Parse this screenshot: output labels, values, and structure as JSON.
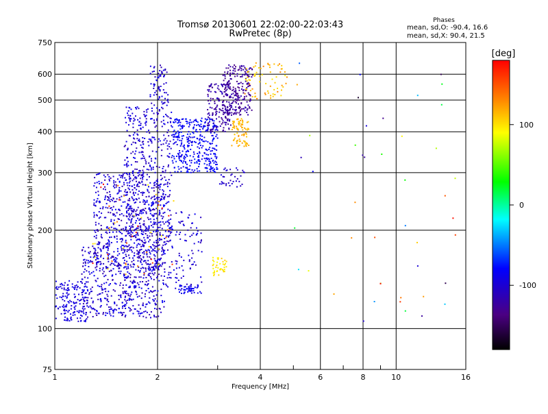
{
  "chart_data": {
    "type": "scatter",
    "title": "Tromsø 20130601 22:02:00-22:03:43",
    "subtitle": "RwPretec (8p)",
    "xlabel": "Frequency [MHz]",
    "ylabel": "Stationary phase Virtual Height [km]",
    "x_scale": "log",
    "y_scale": "log",
    "xlim": [
      1,
      16
    ],
    "ylim": [
      75,
      750
    ],
    "x_ticks": [
      1,
      2,
      4,
      6,
      8,
      10,
      16
    ],
    "x_tick_labels": [
      "1",
      "2",
      "4",
      "6",
      "8",
      "10",
      "16"
    ],
    "y_ticks": [
      75,
      100,
      200,
      300,
      400,
      500,
      600,
      750
    ],
    "y_tick_labels": [
      "75",
      "100",
      "200",
      "300",
      "400",
      "500",
      "600",
      "750"
    ],
    "grid": true,
    "stats": {
      "title": "Phases",
      "line_o": "mean, sd,O: -90.4, 16.6",
      "line_x": "mean, sd,X:  90.4, 21.5"
    },
    "colorbar": {
      "label": "[deg]",
      "range": [
        -180,
        180
      ],
      "ticks": [
        100,
        0,
        -100
      ],
      "tick_labels": [
        "100",
        "0",
        "-100"
      ]
    },
    "clusters": [
      {
        "f": [
          1.0,
          1.25
        ],
        "h": [
          105,
          140
        ],
        "phase": [
          -105,
          -85
        ],
        "n": 170
      },
      {
        "f": [
          1.2,
          2.1
        ],
        "h": [
          108,
          180
        ],
        "phase": [
          -120,
          -80
        ],
        "n": 520
      },
      {
        "f": [
          1.3,
          2.1
        ],
        "h": [
          150,
          300
        ],
        "phase": [
          -120,
          -80
        ],
        "n": 560
      },
      {
        "f": [
          1.6,
          2.2
        ],
        "h": [
          180,
          480
        ],
        "phase": [
          -118,
          -82
        ],
        "n": 520
      },
      {
        "f": [
          1.9,
          2.15
        ],
        "h": [
          480,
          640
        ],
        "phase": [
          -115,
          -85
        ],
        "n": 70
      },
      {
        "f": [
          2.1,
          2.7
        ],
        "h": [
          130,
          230
        ],
        "phase": [
          -115,
          -85
        ],
        "n": 110
      },
      {
        "f": [
          2.2,
          3.0
        ],
        "h": [
          300,
          440
        ],
        "phase": [
          -95,
          -70
        ],
        "n": 360
      },
      {
        "f": [
          2.8,
          3.3
        ],
        "h": [
          400,
          560
        ],
        "phase": [
          -135,
          -105
        ],
        "n": 160
      },
      {
        "f": [
          3.1,
          3.8
        ],
        "h": [
          450,
          640
        ],
        "phase": [
          -138,
          -112
        ],
        "n": 240
      },
      {
        "f": [
          3.0,
          3.6
        ],
        "h": [
          270,
          310
        ],
        "phase": [
          -112,
          -95
        ],
        "n": 35
      },
      {
        "f": [
          3.3,
          3.7
        ],
        "h": [
          360,
          440
        ],
        "phase": [
          105,
          125
        ],
        "n": 80
      },
      {
        "f": [
          3.6,
          4.8
        ],
        "h": [
          500,
          650
        ],
        "phase": [
          95,
          140
        ],
        "n": 70
      },
      {
        "f": [
          2.9,
          3.2
        ],
        "h": [
          145,
          165
        ],
        "phase": [
          85,
          110
        ],
        "n": 40
      },
      {
        "f": [
          2.3,
          2.7
        ],
        "h": [
          128,
          136
        ],
        "phase": [
          -95,
          -80
        ],
        "n": 45
      },
      {
        "f": [
          1.2,
          2.3
        ],
        "h": [
          140,
          280
        ],
        "phase": [
          90,
          180
        ],
        "n": 50
      },
      {
        "f": [
          5.0,
          15.0
        ],
        "h": [
          100,
          650
        ],
        "phase": [
          -180,
          180
        ],
        "n": 45
      }
    ]
  }
}
